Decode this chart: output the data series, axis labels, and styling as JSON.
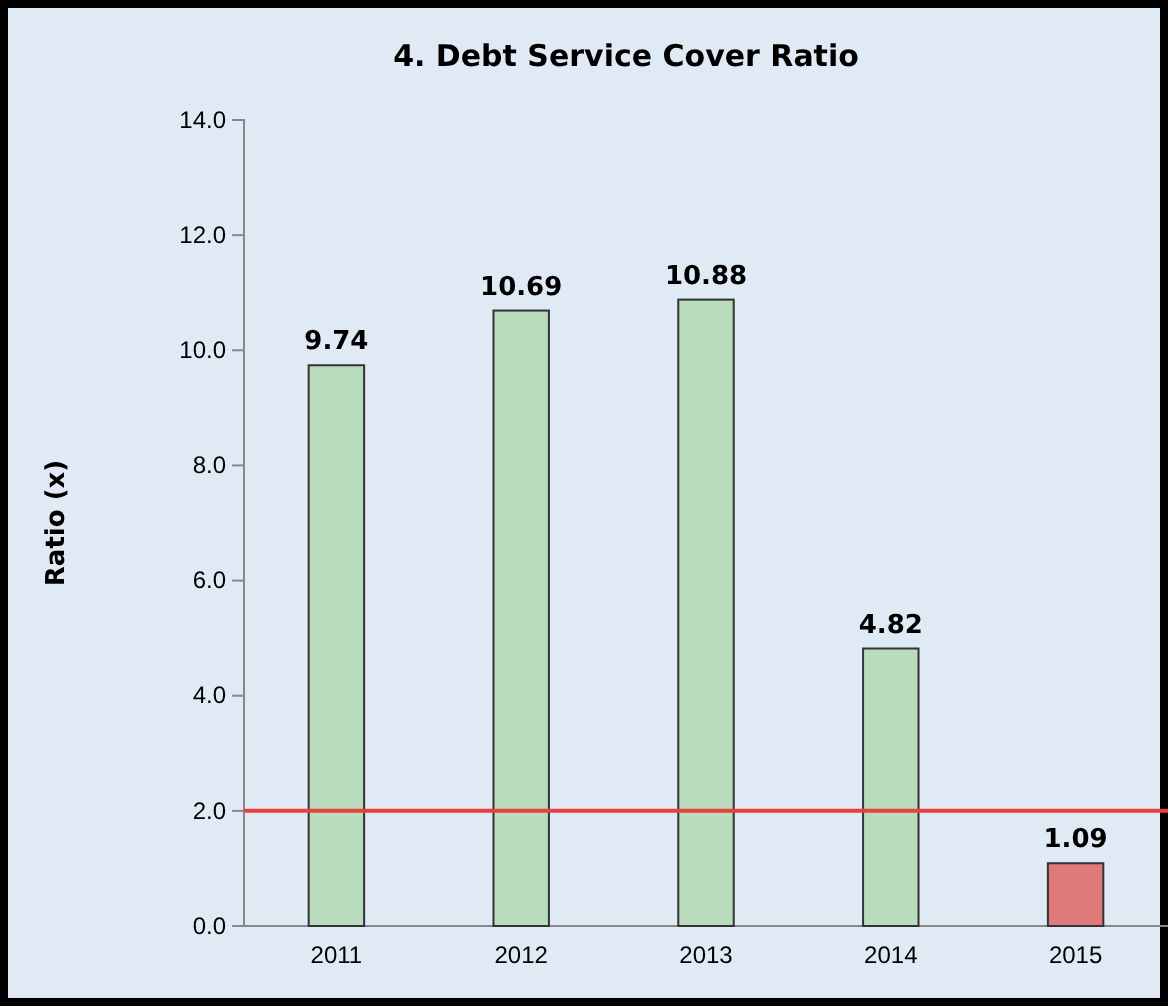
{
  "chart_data": {
    "type": "bar",
    "title": "4. Debt Service Cover Ratio",
    "ylabel": "Ratio (x)",
    "categories": [
      "2011",
      "2012",
      "2013",
      "2014",
      "2015"
    ],
    "values": [
      9.74,
      10.69,
      10.88,
      4.82,
      1.09
    ],
    "colors": [
      "#b9dcbf",
      "#b9dcbf",
      "#b9dcbf",
      "#b9dcbf",
      "#e07a7a"
    ],
    "data_labels": true,
    "ylim": [
      0,
      14
    ],
    "yticks": [
      {
        "value": 0,
        "label": "0.0"
      },
      {
        "value": 2,
        "label": "2.0"
      },
      {
        "value": 4,
        "label": "4.0"
      },
      {
        "value": 6,
        "label": "6.0"
      },
      {
        "value": 8,
        "label": "8.0"
      },
      {
        "value": 10,
        "label": "10.0"
      },
      {
        "value": 12,
        "label": "12.0"
      },
      {
        "value": 14,
        "label": "14.0"
      }
    ],
    "ref_lines": [
      {
        "axis": "y",
        "value": 2,
        "color": "#e8403a"
      }
    ]
  }
}
